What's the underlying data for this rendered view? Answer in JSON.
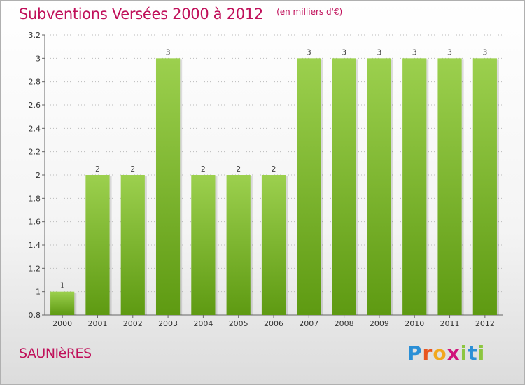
{
  "header": {
    "title": "Subventions Versées 2000 à 2012",
    "unit": "(en milliers d'€)"
  },
  "footer": {
    "commune": "SAUNIèRES",
    "brand": "Proxiti"
  },
  "colors": {
    "accent": "#c0105a",
    "bar_top": "#9cd04e",
    "bar_bottom": "#5e9a12",
    "grid": "#bbbbbb"
  },
  "chart_data": {
    "type": "bar",
    "categories": [
      "2000",
      "2001",
      "2002",
      "2003",
      "2004",
      "2005",
      "2006",
      "2007",
      "2008",
      "2009",
      "2010",
      "2011",
      "2012"
    ],
    "values": [
      1,
      2,
      2,
      3,
      2,
      2,
      2,
      3,
      3,
      3,
      3,
      3,
      3
    ],
    "data_labels": [
      "1",
      "2",
      "2",
      "3",
      "2",
      "2",
      "2",
      "3",
      "3",
      "3",
      "3",
      "3",
      "3"
    ],
    "ylim": [
      0.8,
      3.2
    ],
    "yticks": [
      0.8,
      1,
      1.2,
      1.4,
      1.6,
      1.8,
      2,
      2.2,
      2.4,
      2.6,
      2.8,
      3,
      3.2
    ],
    "ytick_labels": [
      "0.8",
      "1",
      "1.2",
      "1.4",
      "1.6",
      "1.8",
      "2",
      "2.2",
      "2.4",
      "2.6",
      "2.8",
      "3",
      "3.2"
    ],
    "grid": true
  }
}
